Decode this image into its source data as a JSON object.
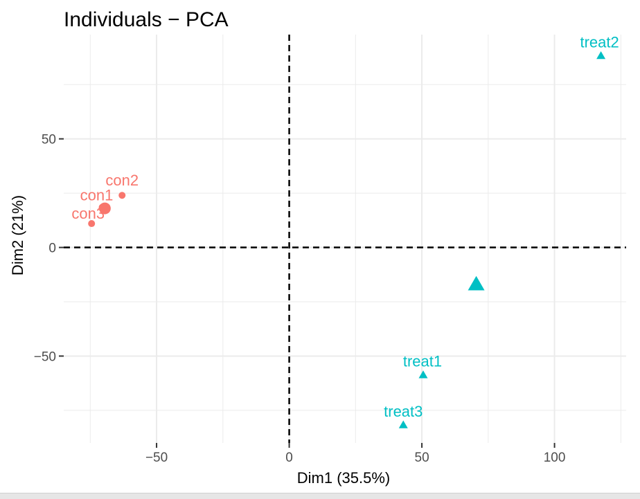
{
  "chart_data": {
    "type": "scatter",
    "title": "Individuals − PCA",
    "xlabel": "Dim1 (35.5%)",
    "ylabel": "Dim2 (21%)",
    "xlim": [
      -85,
      127
    ],
    "ylim": [
      -90,
      98
    ],
    "x_ticks": [
      -50,
      0,
      50,
      100
    ],
    "x_tick_labels": [
      "−50",
      "0",
      "50",
      "100"
    ],
    "y_ticks": [
      -50,
      0,
      50
    ],
    "y_tick_labels": [
      "−50",
      "0",
      "50"
    ],
    "grid": true,
    "reference_lines": [
      {
        "axis": "x",
        "value": 0,
        "style": "dashed"
      },
      {
        "axis": "y",
        "value": 0,
        "style": "dashed"
      }
    ],
    "colors": {
      "con": "#f8766d",
      "treat": "#00bfc4",
      "grid": "#ebebeb",
      "axis_text": "#4d4d4d"
    },
    "series": [
      {
        "marker": "circle",
        "color": "#f8766d",
        "points": [
          {
            "label": "con1",
            "x": -70.5,
            "y": 18.5
          },
          {
            "label": "con2",
            "x": -63,
            "y": 24
          },
          {
            "label": "con3",
            "x": -74.5,
            "y": 11
          }
        ],
        "centroid": {
          "x": -69.5,
          "y": 18
        }
      },
      {
        "marker": "triangle",
        "color": "#00bfc4",
        "points": [
          {
            "label": "treat1",
            "x": 50.5,
            "y": -59
          },
          {
            "label": "treat2",
            "x": 117.5,
            "y": 88
          },
          {
            "label": "treat3",
            "x": 43,
            "y": -82
          }
        ],
        "centroid": {
          "x": 70.5,
          "y": -17.5
        }
      }
    ]
  }
}
